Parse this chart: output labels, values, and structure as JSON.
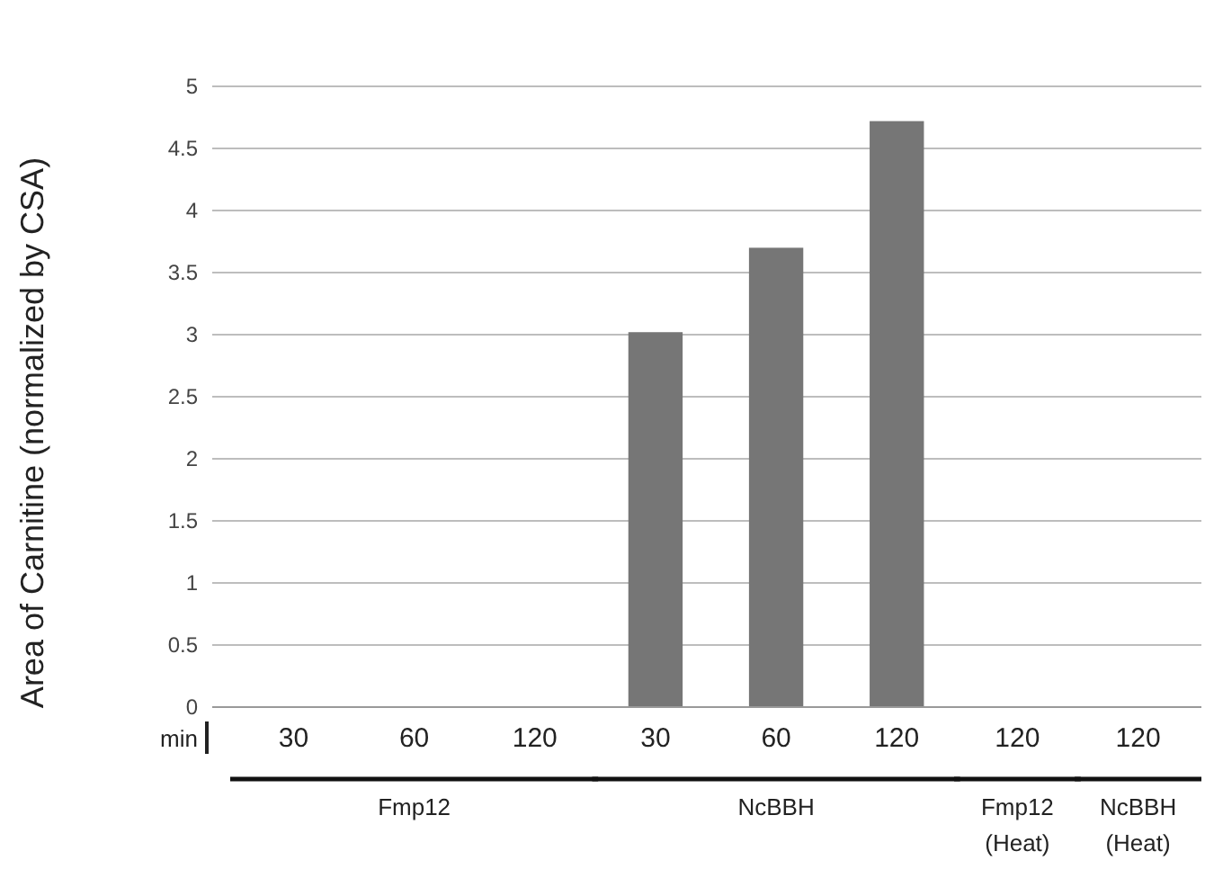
{
  "chart_data": {
    "type": "bar",
    "ylabel": "Area of Carnitine (normalized by CSA)",
    "categories": [
      "30",
      "60",
      "120",
      "30",
      "60",
      "120",
      "120",
      "120"
    ],
    "values": [
      0,
      0,
      0,
      3.02,
      3.7,
      4.72,
      0,
      0
    ],
    "color": "#767676",
    "ylim": [
      0,
      5
    ],
    "yticks": [
      0,
      0.5,
      1,
      1.5,
      2,
      2.5,
      3,
      3.5,
      4,
      4.5,
      5
    ],
    "grid": "y",
    "annotations": [
      "min",
      "Fmp12",
      "NcBBH",
      "Fmp12\n(Heat)",
      "NcBBH\n(Heat)"
    ]
  }
}
